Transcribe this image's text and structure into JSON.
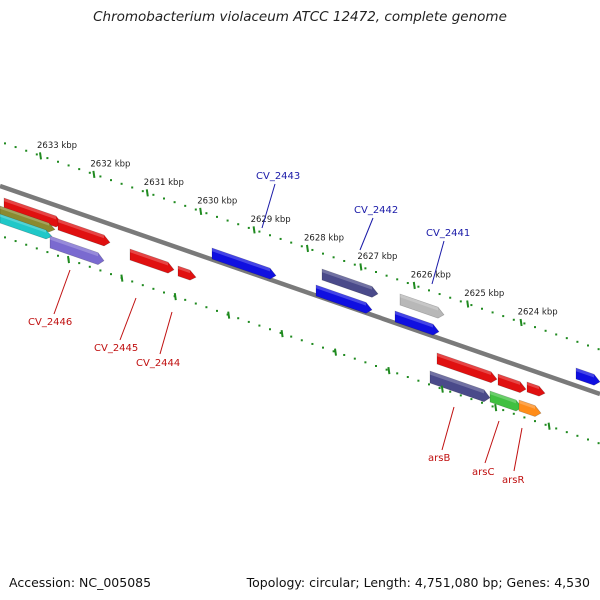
{
  "title": "Chromobacterium violaceum ATCC 12472, complete genome",
  "footer": {
    "accession": "Accession: NC_005085",
    "topology": "Topology: circular; Length: 4,751,080 bp; Genes: 4,530"
  },
  "ticks": [
    {
      "label": "2633 kbp"
    },
    {
      "label": "2632 kbp"
    },
    {
      "label": "2631 kbp"
    },
    {
      "label": "2630 kbp"
    },
    {
      "label": "2629 kbp"
    },
    {
      "label": "2628 kbp"
    },
    {
      "label": "2627 kbp"
    },
    {
      "label": "2626 kbp"
    },
    {
      "label": "2625 kbp"
    },
    {
      "label": "2624 kbp"
    }
  ],
  "gene_labels": [
    {
      "label": "CV_2443",
      "color": "#1a1aa8"
    },
    {
      "label": "CV_2442",
      "color": "#1a1aa8"
    },
    {
      "label": "CV_2441",
      "color": "#1a1aa8"
    },
    {
      "label": "CV_2446",
      "color": "#c01010"
    },
    {
      "label": "CV_2445",
      "color": "#c01010"
    },
    {
      "label": "CV_2444",
      "color": "#c01010"
    },
    {
      "label": "arsB",
      "color": "#c01010"
    },
    {
      "label": "arsC",
      "color": "#c01010"
    },
    {
      "label": "arsR",
      "color": "#c01010"
    }
  ],
  "colors": {
    "backbone": "#7a7a7a",
    "ticks": "#1f8a1f",
    "red": "#e01010",
    "blue": "#1010e0",
    "dark_slate": "#4a4a8a",
    "gray": "#b8b8b8",
    "slate": "#7a6ad0",
    "green": "#40c040",
    "orange": "#ff8c1a",
    "olive": "#8a8a30",
    "cyan": "#20c8c8"
  }
}
